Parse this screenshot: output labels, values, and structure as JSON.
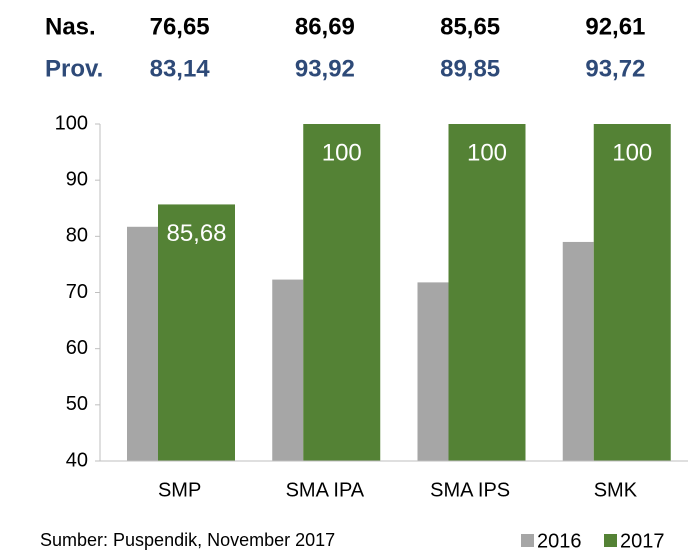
{
  "chart_data": {
    "type": "bar",
    "header_rows": [
      {
        "label": "Nas.",
        "color": "#000000",
        "values": [
          "76,65",
          "86,69",
          "85,65",
          "92,61"
        ]
      },
      {
        "label": "Prov.",
        "color": "#2e4a78",
        "values": [
          "83,14",
          "93,92",
          "89,85",
          "93,72"
        ]
      }
    ],
    "categories": [
      "SMP",
      "SMA IPA",
      "SMA IPS",
      "SMK"
    ],
    "series": [
      {
        "name": "2016",
        "color": "#a6a6a6",
        "values": [
          81.7,
          72.3,
          71.8,
          79.0
        ]
      },
      {
        "name": "2017",
        "color": "#548235",
        "values": [
          85.68,
          100,
          100,
          100
        ],
        "value_labels": [
          "85,68",
          "100",
          "100",
          "100"
        ]
      }
    ],
    "ylim": [
      40,
      100
    ],
    "yticks": [
      40,
      50,
      60,
      70,
      80,
      90,
      100
    ],
    "grid": false,
    "legend": "bottom-right",
    "source": "Sumber: Puspendik, November 2017"
  }
}
